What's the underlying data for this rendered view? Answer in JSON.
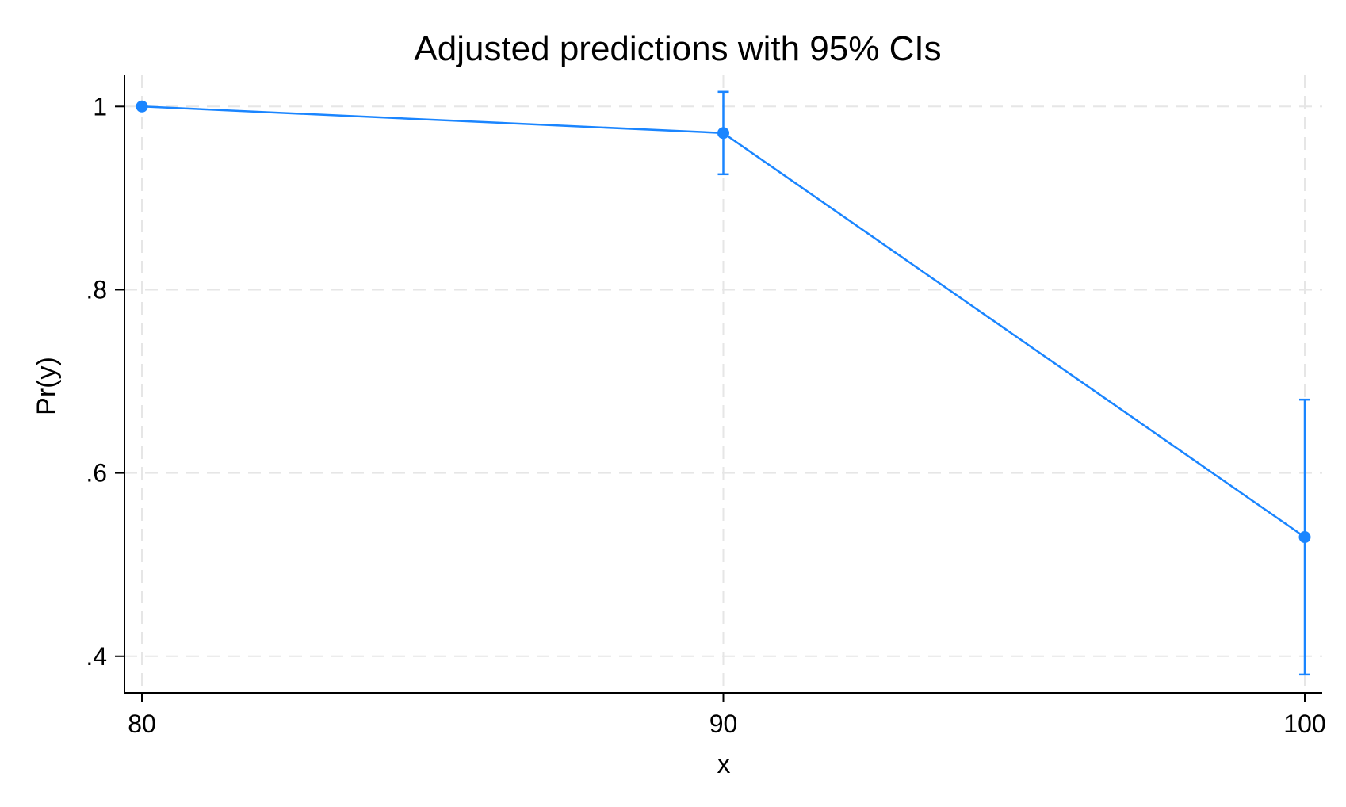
{
  "chart_data": {
    "type": "line",
    "title": "Adjusted predictions with 95% CIs",
    "xlabel": "x",
    "ylabel": "Pr(y)",
    "x": [
      80,
      90,
      100
    ],
    "x_tick_values": [
      80,
      90,
      100
    ],
    "x_tick_labels": [
      "80",
      "90",
      "100"
    ],
    "y_tick_values": [
      1,
      0.8,
      0.6,
      0.4
    ],
    "y_tick_labels": [
      "1",
      ".8",
      ".6",
      ".4"
    ],
    "xlim": [
      79.7,
      100.3
    ],
    "ylim": [
      0.36,
      1.034
    ],
    "grid": true,
    "series": [
      {
        "values": [
          1.0,
          0.971,
          0.53
        ],
        "ci_lower": [
          1.0,
          0.926,
          0.38
        ],
        "ci_upper": [
          1.0,
          1.016,
          0.68
        ],
        "color": "#1a85ff"
      }
    ]
  }
}
